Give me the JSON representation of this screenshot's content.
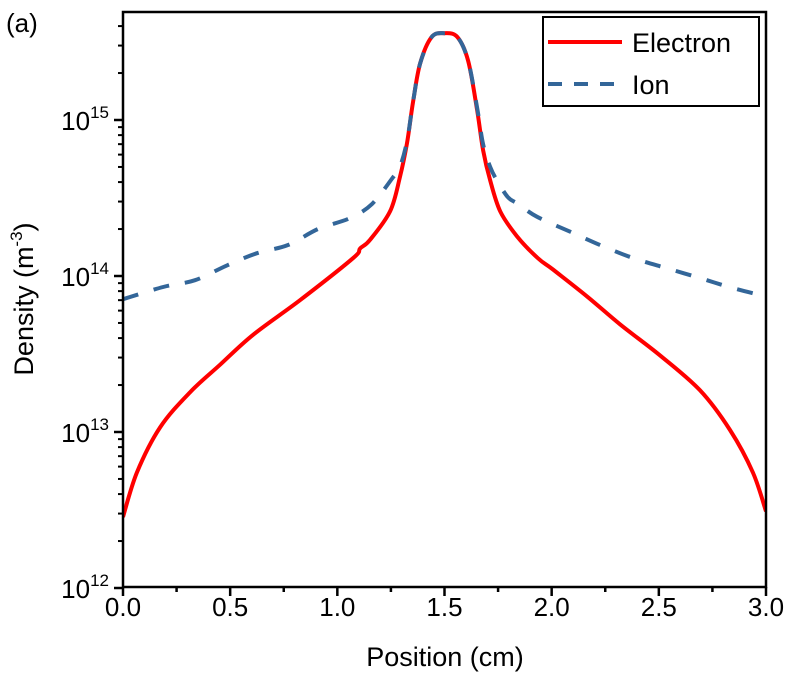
{
  "panel_label": "(a)",
  "chart_data": {
    "type": "line",
    "title": "",
    "xlabel": "Position (cm)",
    "ylabel_base": "Density (m",
    "ylabel_sup": "-3",
    "ylabel_tail": ")",
    "xlim": [
      0,
      3.0
    ],
    "ylim_log10": [
      12,
      15.69
    ],
    "yscale": "log",
    "grid": false,
    "legend_position": "top-right",
    "x_ticks": [
      {
        "value": 0.0,
        "label": "0.0"
      },
      {
        "value": 0.5,
        "label": "0.5"
      },
      {
        "value": 1.0,
        "label": "1.0"
      },
      {
        "value": 1.5,
        "label": "1.5"
      },
      {
        "value": 2.0,
        "label": "2.0"
      },
      {
        "value": 2.5,
        "label": "2.5"
      },
      {
        "value": 3.0,
        "label": "3.0"
      }
    ],
    "y_ticks": [
      {
        "exp": 12,
        "base": "10",
        "sup": "12"
      },
      {
        "exp": 13,
        "base": "10",
        "sup": "13"
      },
      {
        "exp": 14,
        "base": "10",
        "sup": "14"
      },
      {
        "exp": 15,
        "base": "10",
        "sup": "15"
      }
    ],
    "series": [
      {
        "name": "Electron",
        "color": "#ff0000",
        "style": "solid",
        "x": [
          0.0,
          0.065,
          0.173,
          0.313,
          0.453,
          0.607,
          0.826,
          1.073,
          1.106,
          1.152,
          1.246,
          1.292,
          1.325,
          1.353,
          1.386,
          1.44,
          1.5,
          1.56,
          1.61,
          1.652,
          1.68,
          1.713,
          1.76,
          1.838,
          1.936,
          2.006,
          2.165,
          2.319,
          2.505,
          2.692,
          2.832,
          2.939,
          3.0
        ],
        "y": [
          2850000000000.0,
          5500000000000.0,
          10700000000000.0,
          18000000000000.0,
          27000000000000.0,
          42000000000000.0,
          70000000000000.0,
          130000000000000.0,
          150000000000000.0,
          170000000000000.0,
          260000000000000.0,
          430000000000000.0,
          710000000000000.0,
          1300000000000000.0,
          2300000000000000.0,
          3400000000000000.0,
          3600000000000000.0,
          3400000000000000.0,
          2400000000000000.0,
          1160000000000000.0,
          640000000000000.0,
          410000000000000.0,
          260000000000000.0,
          180000000000000.0,
          130000000000000.0,
          110000000000000.0,
          74000000000000.0,
          49000000000000.0,
          31000000000000.0,
          18500000000000.0,
          10300000000000.0,
          5500000000000.0,
          3100000000000.0
        ]
      },
      {
        "name": "Ion",
        "color": "#336699",
        "style": "dashed",
        "x": [
          0.0,
          0.187,
          0.336,
          0.485,
          0.625,
          0.77,
          0.91,
          1.059,
          1.162,
          1.26,
          1.292,
          1.325,
          1.353,
          1.386,
          1.44,
          1.5,
          1.56,
          1.61,
          1.652,
          1.68,
          1.713,
          1.745,
          1.796,
          1.843,
          1.931,
          2.095,
          2.24,
          2.389,
          2.538,
          2.692,
          2.841,
          3.0
        ],
        "y": [
          71000000000000.0,
          85000000000000.0,
          94000000000000.0,
          117000000000000.0,
          140000000000000.0,
          158000000000000.0,
          200000000000000.0,
          235000000000000.0,
          290000000000000.0,
          430000000000000.0,
          500000000000000.0,
          730000000000000.0,
          1300000000000000.0,
          2300000000000000.0,
          3400000000000000.0,
          3600000000000000.0,
          3400000000000000.0,
          2400000000000000.0,
          1200000000000000.0,
          700000000000000.0,
          500000000000000.0,
          410000000000000.0,
          320000000000000.0,
          290000000000000.0,
          240000000000000.0,
          190000000000000.0,
          155000000000000.0,
          129000000000000.0,
          112000000000000.0,
          97000000000000.0,
          84000000000000.0,
          74000000000000.0
        ]
      }
    ]
  }
}
